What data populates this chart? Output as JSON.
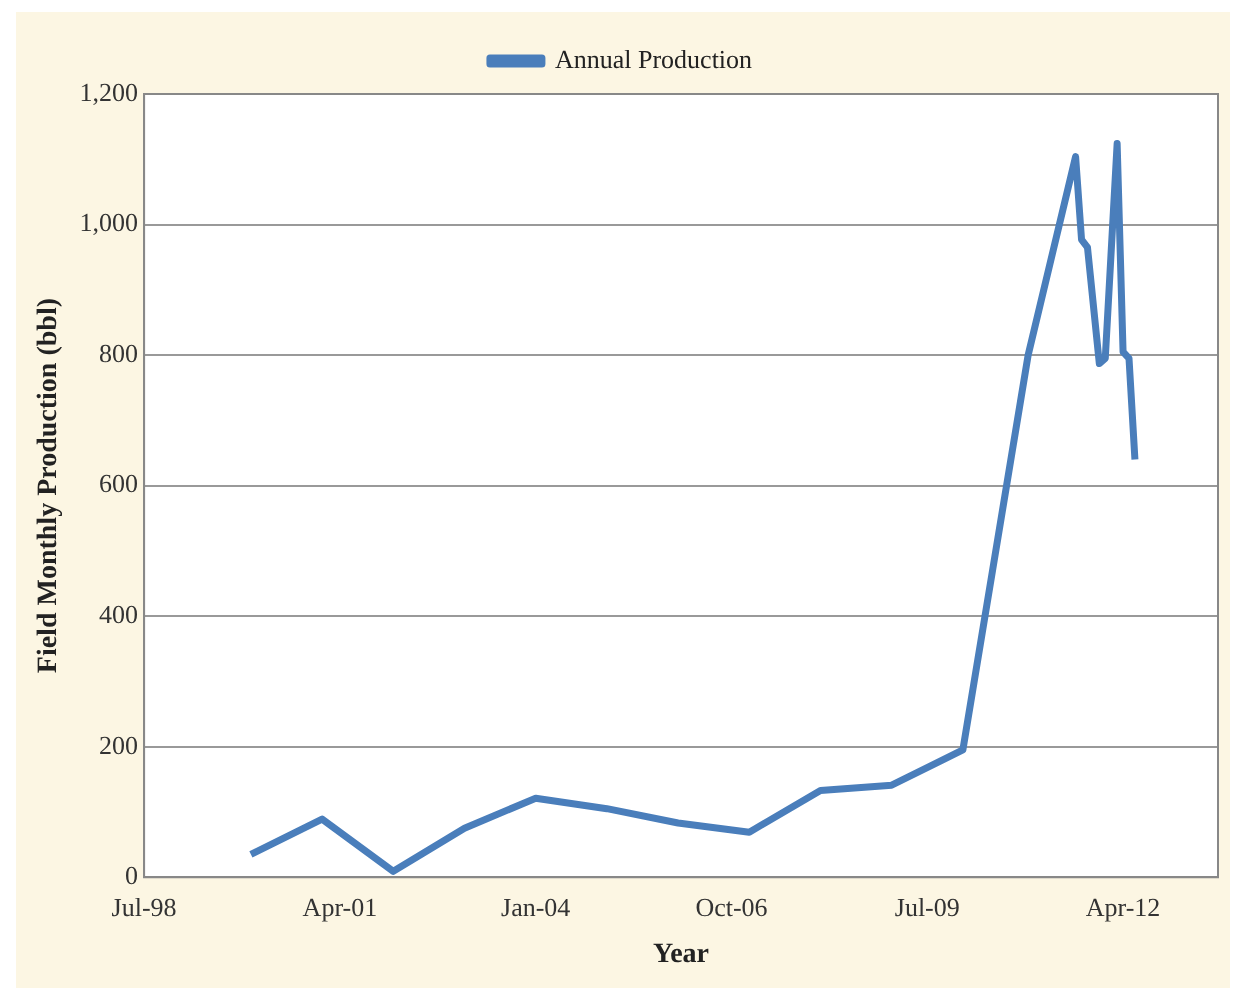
{
  "chart_data": {
    "type": "line",
    "xlabel": "Year",
    "ylabel": "Field Monthly Production (bbl)",
    "x": [
      "2000-01",
      "2001-01",
      "2002-01",
      "2003-01",
      "2004-01",
      "2005-01",
      "2006-01",
      "2007-01",
      "2008-01",
      "2009-01",
      "2010-01",
      "2010-06",
      "2010-12",
      "2011-08",
      "2011-09",
      "2011-10",
      "2011-12",
      "2012-01",
      "2012-03",
      "2012-04",
      "2012-05",
      "2012-06"
    ],
    "series": [
      {
        "name": "Annual Production",
        "color": "#4a7ebb",
        "values": [
          35,
          89,
          9,
          75,
          121,
          105,
          83,
          69,
          133,
          141,
          195,
          470,
          800,
          1104,
          977,
          965,
          787,
          795,
          1124,
          805,
          795,
          640
        ]
      }
    ],
    "xlim": [
      "1998-07",
      "2013-08"
    ],
    "xticks": [
      {
        "value": "1998-07",
        "label": "Jul-98"
      },
      {
        "value": "2001-04",
        "label": "Apr-01"
      },
      {
        "value": "2004-01",
        "label": "Jan-04"
      },
      {
        "value": "2006-10",
        "label": "Oct-06"
      },
      {
        "value": "2009-07",
        "label": "Jul-09"
      },
      {
        "value": "2012-04",
        "label": "Apr-12"
      }
    ],
    "ylim": [
      0,
      1200
    ],
    "yticks": [
      0,
      200,
      400,
      600,
      800,
      {
        "value": 1000,
        "label": "1,000"
      },
      {
        "value": 1200,
        "label": "1,200"
      }
    ],
    "grid": "y",
    "legend": "top",
    "marker": "none",
    "line_style": "solid"
  }
}
